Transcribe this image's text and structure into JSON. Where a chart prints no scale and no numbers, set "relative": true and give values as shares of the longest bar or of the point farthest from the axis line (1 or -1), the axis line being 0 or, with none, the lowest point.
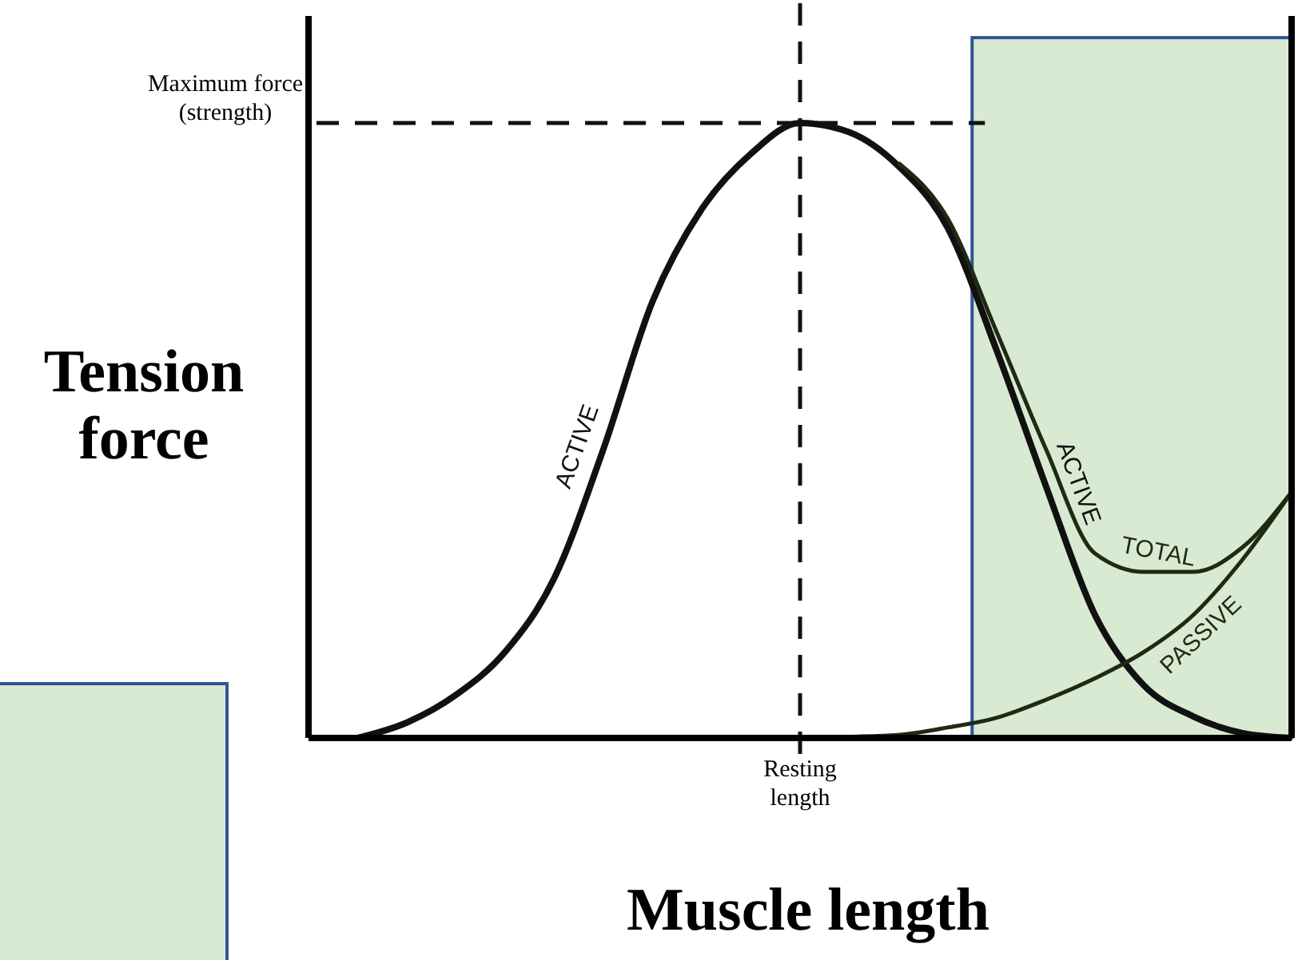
{
  "chart_data": {
    "type": "line",
    "relative": true,
    "xlabel": "Muscle length",
    "ylabel": "Tension force",
    "marker": "none",
    "line_style": "solid",
    "categories": [
      null,
      null,
      null,
      null,
      null,
      null,
      null,
      null,
      null,
      null,
      null,
      null,
      null,
      null,
      null,
      null,
      null,
      null,
      null,
      null,
      null
    ],
    "series": [
      {
        "name": "ACTIVE",
        "color": "#111111",
        "values": [
          null,
          0,
          0.025,
          0.07,
          0.14,
          0.26,
          0.47,
          0.71,
          0.86,
          0.95,
          1,
          0.985,
          0.93,
          0.83,
          0.63,
          0.41,
          0.2,
          0.085,
          0.035,
          0.008,
          0
        ]
      },
      {
        "name": "PASSIVE",
        "color": "#1f2a12",
        "values": [
          null,
          null,
          null,
          null,
          null,
          null,
          null,
          null,
          null,
          null,
          0,
          0.002,
          0.005,
          0.017,
          0.033,
          0.062,
          0.097,
          0.14,
          0.2,
          0.29,
          0.4
        ]
      },
      {
        "name": "TOTAL",
        "color": "#1f2a12",
        "values": [
          null,
          null,
          null,
          null,
          null,
          null,
          null,
          null,
          null,
          null,
          null,
          null,
          0.935,
          0.845,
          0.66,
          0.47,
          0.3,
          0.27,
          0.27,
          0.31,
          0.4
        ]
      }
    ],
    "annotations": [
      "Resting length",
      "Maximum force (strength)"
    ]
  }
}
